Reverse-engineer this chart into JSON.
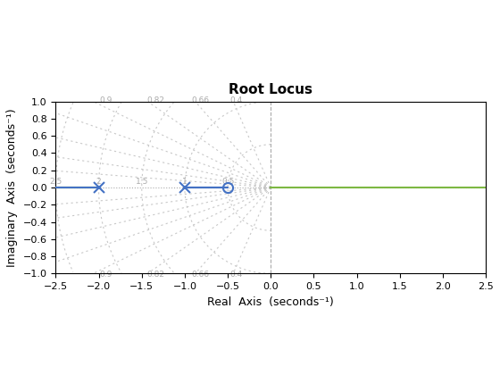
{
  "title": "Root Locus",
  "xlabel": "Real  Axis  (seconds⁻¹)",
  "ylabel": "Imaginary  Axis  (seconds⁻¹)",
  "xlim": [
    -2.5,
    2.5
  ],
  "ylim": [
    -1.0,
    1.0
  ],
  "poles": [
    -2.0,
    -1.0
  ],
  "zeros": [
    -0.5
  ],
  "locus_color_blue": "#4472c4",
  "locus_color_green": "#7db843",
  "bg_color": "#ffffff",
  "damping_ratios": [
    0.997,
    0.99,
    0.974,
    0.945,
    0.9,
    0.82,
    0.66,
    0.4
  ],
  "natural_freqs": [
    0.5,
    1.0,
    1.5,
    2.0,
    2.5
  ],
  "xticks": [
    -2.5,
    -2.0,
    -1.5,
    -1.0,
    -0.5,
    0.0,
    0.5,
    1.0,
    1.5,
    2.0,
    2.5
  ],
  "yticks": [
    -1.0,
    -0.8,
    -0.6,
    -0.4,
    -0.2,
    0.0,
    0.2,
    0.4,
    0.6,
    0.8,
    1.0
  ],
  "figsize": [
    5.6,
    4.2
  ],
  "dpi": 100
}
